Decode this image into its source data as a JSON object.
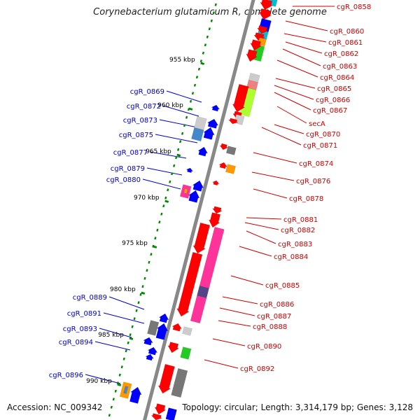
{
  "title": "Corynebacterium glutamicum R, complete genome",
  "accession": "Accession: NC_009342",
  "topology": "Topology: circular; Length: 3,314,179 bp; Genes: 3,128",
  "colors": {
    "backbone": "#888888",
    "forward_label": "#cc0000",
    "reverse_label": "#0000cc",
    "ruler": "#008800",
    "forward_gene": "#ff0000",
    "reverse_gene": "#0000ff",
    "pseudo": "#777777"
  },
  "ticks": [
    "955 kbp",
    "960 kbp",
    "965 kbp",
    "970 kbp",
    "975 kbp",
    "980 kbp",
    "985 kbp",
    "990 kbp"
  ],
  "top_partial_label": "cgR_0858",
  "forward_labels": [
    "cgR_0860",
    "cgR_0861",
    "cgR_0862",
    "cgR_0863",
    "cgR_0864",
    "cgR_0865",
    "cgR_0866",
    "cgR_0867",
    "secA",
    "cgR_0870",
    "cgR_0871",
    "cgR_0874",
    "cgR_0876",
    "cgR_0878",
    "cgR_0881",
    "cgR_0882",
    "cgR_0883",
    "cgR_0884",
    "cgR_0885",
    "cgR_0886",
    "cgR_0887",
    "cgR_0888",
    "cgR_0890",
    "cgR_0892"
  ],
  "reverse_labels": [
    "cgR_0869",
    "cgR_0872",
    "cgR_0873",
    "cgR_0875",
    "cgR_0877",
    "cgR_0879",
    "cgR_0880",
    "cgR_0889",
    "cgR_0891",
    "cgR_0893",
    "cgR_0894",
    "cgR_0896"
  ]
}
